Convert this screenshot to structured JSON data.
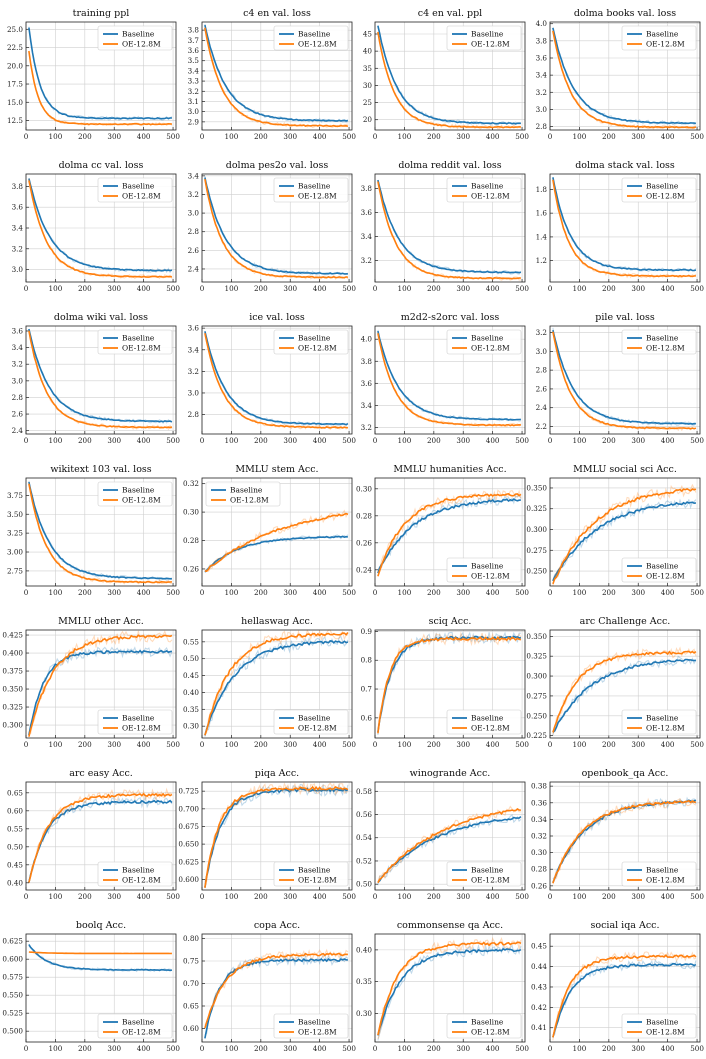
{
  "legend_labels": [
    "Baseline",
    "OE-12.8M"
  ],
  "colors": {
    "baseline": "#1f77b4",
    "oe": "#ff7f0e"
  },
  "chart_data": [
    {
      "type": "line",
      "title": "training ppl",
      "xlim": [
        0,
        510
      ],
      "ylim": [
        11.2,
        26
      ],
      "yticks": [
        12.5,
        15.0,
        17.5,
        20.0,
        22.5,
        25.0
      ],
      "ydecimals": 1,
      "legend": "top-right",
      "series": [
        {
          "name": "Baseline",
          "start": 25.2,
          "end": 12.8,
          "tau": 38
        },
        {
          "name": "OE-12.8M",
          "start": 22.0,
          "end": 12.0,
          "tau": 32
        }
      ]
    },
    {
      "type": "line",
      "title": "c4 en val. loss",
      "xlim": [
        0,
        510
      ],
      "ylim": [
        2.82,
        3.88
      ],
      "yticks": [
        2.9,
        3.0,
        3.1,
        3.2,
        3.3,
        3.4,
        3.5,
        3.6,
        3.7,
        3.8
      ],
      "ydecimals": 1,
      "legend": "top-right",
      "series": [
        {
          "name": "Baseline",
          "start": 3.85,
          "end": 2.91,
          "tau": 70
        },
        {
          "name": "OE-12.8M",
          "start": 3.82,
          "end": 2.86,
          "tau": 60
        }
      ]
    },
    {
      "type": "line",
      "title": "c4 en val. ppl",
      "xlim": [
        0,
        510
      ],
      "ylim": [
        17,
        48.5
      ],
      "yticks": [
        20,
        25,
        30,
        35,
        40,
        45
      ],
      "ydecimals": 0,
      "legend": "top-right",
      "series": [
        {
          "name": "Baseline",
          "start": 47.5,
          "end": 18.9,
          "tau": 65
        },
        {
          "name": "OE-12.8M",
          "start": 45.5,
          "end": 17.8,
          "tau": 55
        }
      ]
    },
    {
      "type": "line",
      "title": "dolma books val. loss",
      "xlim": [
        0,
        510
      ],
      "ylim": [
        2.76,
        4.02
      ],
      "yticks": [
        2.8,
        3.0,
        3.2,
        3.4,
        3.6,
        3.8,
        4.0
      ],
      "ydecimals": 1,
      "legend": "top-right",
      "series": [
        {
          "name": "Baseline",
          "start": 3.95,
          "end": 2.84,
          "tau": 70
        },
        {
          "name": "OE-12.8M",
          "start": 3.92,
          "end": 2.79,
          "tau": 60
        }
      ]
    },
    {
      "type": "line",
      "title": "dolma cc val. loss",
      "xlim": [
        0,
        510
      ],
      "ylim": [
        2.88,
        3.92
      ],
      "yticks": [
        3.0,
        3.2,
        3.4,
        3.6,
        3.8
      ],
      "ydecimals": 1,
      "legend": "top-right",
      "series": [
        {
          "name": "Baseline",
          "start": 3.88,
          "end": 2.99,
          "tau": 70
        },
        {
          "name": "OE-12.8M",
          "start": 3.86,
          "end": 2.93,
          "tau": 60
        }
      ]
    },
    {
      "type": "line",
      "title": "dolma pes2o val. loss",
      "xlim": [
        0,
        510
      ],
      "ylim": [
        2.26,
        3.42
      ],
      "yticks": [
        2.4,
        2.6,
        2.8,
        3.0,
        3.2,
        3.4
      ],
      "ydecimals": 1,
      "legend": "top-right",
      "series": [
        {
          "name": "Baseline",
          "start": 3.38,
          "end": 2.35,
          "tau": 70
        },
        {
          "name": "OE-12.8M",
          "start": 3.36,
          "end": 2.31,
          "tau": 60
        }
      ]
    },
    {
      "type": "line",
      "title": "dolma reddit val. loss",
      "xlim": [
        0,
        510
      ],
      "ylim": [
        3.02,
        3.92
      ],
      "yticks": [
        3.2,
        3.4,
        3.6,
        3.8
      ],
      "ydecimals": 1,
      "legend": "top-right",
      "series": [
        {
          "name": "Baseline",
          "start": 3.87,
          "end": 3.1,
          "tau": 70
        },
        {
          "name": "OE-12.8M",
          "start": 3.86,
          "end": 3.05,
          "tau": 60
        }
      ]
    },
    {
      "type": "line",
      "title": "dolma stack val. loss",
      "xlim": [
        0,
        510
      ],
      "ylim": [
        1.02,
        1.93
      ],
      "yticks": [
        1.2,
        1.4,
        1.6,
        1.8
      ],
      "ydecimals": 1,
      "legend": "top-right",
      "series": [
        {
          "name": "Baseline",
          "start": 1.9,
          "end": 1.12,
          "tau": 60
        },
        {
          "name": "OE-12.8M",
          "start": 1.88,
          "end": 1.07,
          "tau": 52
        }
      ]
    },
    {
      "type": "line",
      "title": "dolma wiki val. loss",
      "xlim": [
        0,
        510
      ],
      "ylim": [
        2.36,
        3.66
      ],
      "yticks": [
        2.4,
        2.6,
        2.8,
        3.0,
        3.2,
        3.4,
        3.6
      ],
      "ydecimals": 1,
      "legend": "top-right",
      "series": [
        {
          "name": "Baseline",
          "start": 3.62,
          "end": 2.51,
          "tau": 70
        },
        {
          "name": "OE-12.8M",
          "start": 3.6,
          "end": 2.44,
          "tau": 60
        }
      ]
    },
    {
      "type": "line",
      "title": "ice val. loss",
      "xlim": [
        0,
        510
      ],
      "ylim": [
        2.62,
        3.62
      ],
      "yticks": [
        2.8,
        3.0,
        3.2,
        3.4,
        3.6
      ],
      "ydecimals": 1,
      "legend": "top-right",
      "series": [
        {
          "name": "Baseline",
          "start": 3.57,
          "end": 2.71,
          "tau": 70
        },
        {
          "name": "OE-12.8M",
          "start": 3.55,
          "end": 2.68,
          "tau": 62
        }
      ]
    },
    {
      "type": "line",
      "title": "m2d2-s2orc val. loss",
      "xlim": [
        0,
        510
      ],
      "ylim": [
        3.14,
        4.12
      ],
      "yticks": [
        3.2,
        3.4,
        3.6,
        3.8,
        4.0
      ],
      "ydecimals": 1,
      "legend": "top-right",
      "series": [
        {
          "name": "Baseline",
          "start": 4.07,
          "end": 3.27,
          "tau": 70
        },
        {
          "name": "OE-12.8M",
          "start": 4.05,
          "end": 3.22,
          "tau": 60
        }
      ]
    },
    {
      "type": "line",
      "title": "pile val. loss",
      "xlim": [
        0,
        510
      ],
      "ylim": [
        2.12,
        3.27
      ],
      "yticks": [
        2.2,
        2.4,
        2.6,
        2.8,
        3.0,
        3.2
      ],
      "ydecimals": 1,
      "legend": "top-right",
      "series": [
        {
          "name": "Baseline",
          "start": 3.23,
          "end": 2.23,
          "tau": 70
        },
        {
          "name": "OE-12.8M",
          "start": 3.21,
          "end": 2.18,
          "tau": 60
        }
      ]
    },
    {
      "type": "line",
      "title": "wikitext 103 val. loss",
      "xlim": [
        0,
        510
      ],
      "ylim": [
        2.55,
        3.98
      ],
      "yticks": [
        2.75,
        3.0,
        3.25,
        3.5,
        3.75
      ],
      "ydecimals": 2,
      "legend": "top-right",
      "series": [
        {
          "name": "Baseline",
          "start": 3.92,
          "end": 2.65,
          "tau": 70
        },
        {
          "name": "OE-12.8M",
          "start": 3.9,
          "end": 2.6,
          "tau": 60
        }
      ]
    },
    {
      "type": "line",
      "title": "MMLU stem Acc.",
      "xlim": [
        0,
        510
      ],
      "ylim": [
        0.248,
        0.324
      ],
      "yticks": [
        0.26,
        0.28,
        0.3,
        0.32
      ],
      "ydecimals": 2,
      "legend": "top-left",
      "series": [
        {
          "name": "Baseline",
          "start": 0.258,
          "end": 0.283,
          "tau": 110
        },
        {
          "name": "OE-12.8M",
          "start": 0.258,
          "end": 0.306,
          "tau": 260
        }
      ]
    },
    {
      "type": "line",
      "title": "MMLU humanities Acc.",
      "xlim": [
        0,
        510
      ],
      "ylim": [
        0.228,
        0.308
      ],
      "yticks": [
        0.24,
        0.26,
        0.28,
        0.3
      ],
      "ydecimals": 2,
      "legend": "bottom-right",
      "series": [
        {
          "name": "Baseline",
          "start": 0.238,
          "end": 0.293,
          "tau": 120
        },
        {
          "name": "OE-12.8M",
          "start": 0.236,
          "end": 0.296,
          "tau": 90
        }
      ]
    },
    {
      "type": "line",
      "title": "MMLU social sci Acc.",
      "xlim": [
        0,
        510
      ],
      "ylim": [
        0.232,
        0.362
      ],
      "yticks": [
        0.25,
        0.275,
        0.3,
        0.325,
        0.35
      ],
      "ydecimals": 3,
      "legend": "bottom-right",
      "series": [
        {
          "name": "Baseline",
          "start": 0.238,
          "end": 0.337,
          "tau": 150
        },
        {
          "name": "OE-12.8M",
          "start": 0.234,
          "end": 0.352,
          "tau": 140
        }
      ]
    },
    {
      "type": "line",
      "title": "MMLU other Acc.",
      "xlim": [
        0,
        510
      ],
      "ylim": [
        0.282,
        0.432
      ],
      "yticks": [
        0.3,
        0.325,
        0.35,
        0.375,
        0.4,
        0.425
      ],
      "ydecimals": 3,
      "legend": "bottom-right",
      "series": [
        {
          "name": "Baseline",
          "start": 0.285,
          "end": 0.402,
          "tau": 50
        },
        {
          "name": "OE-12.8M",
          "start": 0.283,
          "end": 0.424,
          "tau": 80
        }
      ]
    },
    {
      "type": "line",
      "title": "hellaswag Acc.",
      "xlim": [
        0,
        510
      ],
      "ylim": [
        0.265,
        0.585
      ],
      "yticks": [
        0.3,
        0.35,
        0.4,
        0.45,
        0.5,
        0.55
      ],
      "ydecimals": 2,
      "legend": "bottom-right",
      "series": [
        {
          "name": "Baseline",
          "start": 0.275,
          "end": 0.553,
          "tau": 100
        },
        {
          "name": "OE-12.8M",
          "start": 0.273,
          "end": 0.575,
          "tau": 85
        }
      ]
    },
    {
      "type": "line",
      "title": "sciq Acc.",
      "xlim": [
        0,
        510
      ],
      "ylim": [
        0.53,
        0.905
      ],
      "yticks": [
        0.6,
        0.7,
        0.8,
        0.9
      ],
      "ydecimals": 1,
      "legend": "bottom-right",
      "series": [
        {
          "name": "Baseline",
          "start": 0.55,
          "end": 0.878,
          "tau": 45
        },
        {
          "name": "OE-12.8M",
          "start": 0.55,
          "end": 0.875,
          "tau": 40
        }
      ]
    },
    {
      "type": "line",
      "title": "arc Challenge Acc.",
      "xlim": [
        0,
        510
      ],
      "ylim": [
        0.222,
        0.358
      ],
      "yticks": [
        0.225,
        0.25,
        0.275,
        0.3,
        0.325,
        0.35
      ],
      "ydecimals": 3,
      "legend": "bottom-right",
      "series": [
        {
          "name": "Baseline",
          "start": 0.228,
          "end": 0.323,
          "tau": 130
        },
        {
          "name": "OE-12.8M",
          "start": 0.228,
          "end": 0.33,
          "tau": 80
        }
      ]
    },
    {
      "type": "line",
      "title": "arc easy Acc.",
      "xlim": [
        0,
        510
      ],
      "ylim": [
        0.38,
        0.68
      ],
      "yticks": [
        0.4,
        0.45,
        0.5,
        0.55,
        0.6,
        0.65
      ],
      "ydecimals": 2,
      "legend": "bottom-right",
      "series": [
        {
          "name": "Baseline",
          "start": 0.4,
          "end": 0.625,
          "tau": 60
        },
        {
          "name": "OE-12.8M",
          "start": 0.4,
          "end": 0.645,
          "tau": 65
        }
      ]
    },
    {
      "type": "line",
      "title": "piqa Acc.",
      "xlim": [
        0,
        510
      ],
      "ylim": [
        0.585,
        0.738
      ],
      "yticks": [
        0.6,
        0.625,
        0.65,
        0.675,
        0.7,
        0.725
      ],
      "ydecimals": 3,
      "legend": "bottom-right",
      "series": [
        {
          "name": "Baseline",
          "start": 0.59,
          "end": 0.727,
          "tau": 55
        },
        {
          "name": "OE-12.8M",
          "start": 0.59,
          "end": 0.729,
          "tau": 50
        }
      ]
    },
    {
      "type": "line",
      "title": "winogrande Acc.",
      "xlim": [
        0,
        510
      ],
      "ylim": [
        0.495,
        0.588
      ],
      "yticks": [
        0.5,
        0.52,
        0.54,
        0.56,
        0.58
      ],
      "ydecimals": 2,
      "legend": "bottom-right",
      "series": [
        {
          "name": "Baseline",
          "start": 0.502,
          "end": 0.563,
          "tau": 200
        },
        {
          "name": "OE-12.8M",
          "start": 0.502,
          "end": 0.572,
          "tau": 220
        }
      ]
    },
    {
      "type": "line",
      "title": "openbook_qa Acc.",
      "xlim": [
        0,
        510
      ],
      "ylim": [
        0.255,
        0.385
      ],
      "yticks": [
        0.26,
        0.28,
        0.3,
        0.32,
        0.34,
        0.36,
        0.38
      ],
      "ydecimals": 2,
      "legend": "bottom-right",
      "series": [
        {
          "name": "Baseline",
          "start": 0.265,
          "end": 0.363,
          "tau": 110
        },
        {
          "name": "OE-12.8M",
          "start": 0.263,
          "end": 0.362,
          "tau": 100
        }
      ]
    },
    {
      "type": "line",
      "title": "boolq Acc.",
      "xlim": [
        0,
        510
      ],
      "ylim": [
        0.485,
        0.635
      ],
      "yticks": [
        0.5,
        0.525,
        0.55,
        0.575,
        0.6,
        0.625
      ],
      "ydecimals": 3,
      "legend": "bottom-right",
      "series": [
        {
          "name": "Baseline",
          "start": 0.62,
          "end": 0.585,
          "tau": 60
        },
        {
          "name": "OE-12.8M",
          "start": 0.61,
          "end": 0.608,
          "tau": 60
        }
      ]
    },
    {
      "type": "line",
      "title": "copa Acc.",
      "xlim": [
        0,
        510
      ],
      "ylim": [
        0.57,
        0.81
      ],
      "yticks": [
        0.6,
        0.65,
        0.7,
        0.75,
        0.8
      ],
      "ydecimals": 2,
      "legend": "bottom-right",
      "series": [
        {
          "name": "Baseline",
          "start": 0.58,
          "end": 0.752,
          "tau": 50
        },
        {
          "name": "OE-12.8M",
          "start": 0.6,
          "end": 0.765,
          "tau": 70
        }
      ]
    },
    {
      "type": "line",
      "title": "commonsense qa Acc.",
      "xlim": [
        0,
        510
      ],
      "ylim": [
        0.255,
        0.425
      ],
      "yticks": [
        0.3,
        0.35,
        0.4
      ],
      "ydecimals": 2,
      "legend": "bottom-right",
      "series": [
        {
          "name": "Baseline",
          "start": 0.265,
          "end": 0.4,
          "tau": 75
        },
        {
          "name": "OE-12.8M",
          "start": 0.265,
          "end": 0.41,
          "tau": 65
        }
      ]
    },
    {
      "type": "line",
      "title": "social iqa Acc.",
      "xlim": [
        0,
        510
      ],
      "ylim": [
        0.403,
        0.456
      ],
      "yticks": [
        0.41,
        0.42,
        0.43,
        0.44,
        0.45
      ],
      "ydecimals": 2,
      "legend": "bottom-right",
      "series": [
        {
          "name": "Baseline",
          "start": 0.405,
          "end": 0.441,
          "tau": 60
        },
        {
          "name": "OE-12.8M",
          "start": 0.405,
          "end": 0.445,
          "tau": 55
        }
      ]
    }
  ],
  "xticks": [
    0,
    100,
    200,
    300,
    400,
    500
  ]
}
